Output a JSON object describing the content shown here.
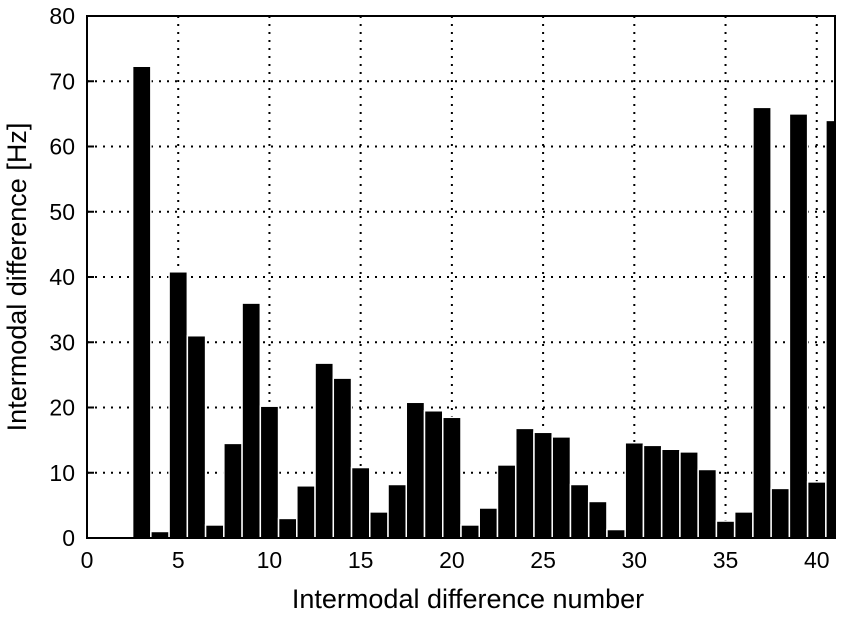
{
  "chart_data": {
    "type": "bar",
    "title": "",
    "xlabel": "Intermodal difference number",
    "ylabel": "Intermodal difference [Hz]",
    "xlim": [
      0,
      41
    ],
    "ylim": [
      0,
      80
    ],
    "xticks": [
      0,
      5,
      10,
      15,
      20,
      25,
      30,
      35,
      40
    ],
    "yticks": [
      0,
      10,
      20,
      30,
      40,
      50,
      60,
      70,
      80
    ],
    "grid": true,
    "bar_color": "#000000",
    "x": [
      3,
      4,
      5,
      6,
      7,
      8,
      9,
      10,
      11,
      12,
      13,
      14,
      15,
      16,
      17,
      18,
      19,
      20,
      21,
      22,
      23,
      24,
      25,
      26,
      27,
      28,
      29,
      30,
      31,
      32,
      33,
      34,
      35,
      36,
      37,
      38,
      39,
      40,
      41
    ],
    "values": [
      72.3,
      1,
      40.8,
      31,
      2,
      14.5,
      36,
      20.2,
      3,
      8,
      26.8,
      24.5,
      10.8,
      4,
      8.2,
      20.8,
      19.5,
      18.5,
      2,
      4.6,
      11.2,
      16.8,
      16.2,
      15.5,
      8.2,
      5.6,
      1.3,
      14.6,
      14.2,
      13.6,
      13.2,
      10.5,
      2.6,
      4,
      66,
      7.6,
      65,
      8.6,
      64
    ]
  }
}
